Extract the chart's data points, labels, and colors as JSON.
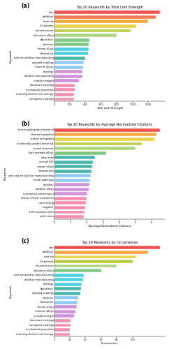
{
  "chart_a": {
    "title": "Top 20 Keywords by Total Link Strength",
    "xlabel": "Total Link Strength",
    "keywords": [
      "composite coatings",
      "scanning electron microscopy",
      "mechanical properties",
      "aluminum coatings",
      "tensile strength",
      "additive manufacturing",
      "coatings",
      "titanium alloys",
      "sprayed coatings",
      "wire arc additive manufacturing",
      "fabrication",
      "binary alloys",
      "textures",
      "deposition",
      "aluminum alloys",
      "microstructure",
      "3d printers",
      "laser arc",
      "additives",
      "wire"
    ],
    "values": [
      250,
      255,
      258,
      262,
      315,
      358,
      362,
      368,
      375,
      400,
      428,
      438,
      442,
      448,
      800,
      975,
      1050,
      1200,
      1300,
      1350
    ],
    "colors": [
      "#f48fb1",
      "#f48fb1",
      "#f48fb1",
      "#f48fb1",
      "#ce93d8",
      "#ce93d8",
      "#ce93d8",
      "#90caf9",
      "#90caf9",
      "#4db6ac",
      "#4dd0e1",
      "#4dd0e1",
      "#81c784",
      "#81c784",
      "#aed581",
      "#bcca45",
      "#e6d44a",
      "#f4a742",
      "#f47c52",
      "#ef5350"
    ],
    "xticks": [
      0,
      200,
      400,
      600,
      800,
      1000,
      1200
    ]
  },
  "chart_b": {
    "title": "Top 20 Keywords by Average Normalized Citations",
    "xlabel": "Average Normalized Citations",
    "keywords": [
      "yield stress",
      "316 / stainless steel",
      "tungsten",
      "curve fitting",
      "effects of heat treatments",
      "mechanical performance",
      "additive alloys",
      "carbides",
      "metal additivies",
      "wire and arc additive manufacturing",
      "manufacture",
      "copper alloys",
      "inconel 625",
      "alloy steel",
      "high strength alloys",
      "crystal structure",
      "functionally graded materials",
      "beams and girders",
      "thermal expansion",
      "functionally graded material"
    ],
    "values": [
      1.8,
      1.85,
      1.9,
      1.95,
      2.0,
      2.05,
      2.1,
      2.15,
      2.2,
      2.25,
      2.28,
      2.33,
      2.38,
      2.5,
      3.2,
      5.0,
      5.4,
      6.15,
      6.3,
      6.5
    ],
    "colors": [
      "#f48fb1",
      "#f48fb1",
      "#f48fb1",
      "#f48fb1",
      "#f48fb1",
      "#ce93d8",
      "#ce93d8",
      "#ce93d8",
      "#90caf9",
      "#90caf9",
      "#4db6ac",
      "#4db6ac",
      "#4db6ac",
      "#4db6ac",
      "#81c784",
      "#aed581",
      "#bcca45",
      "#e6d44a",
      "#f4a742",
      "#ef5350"
    ],
    "xticks": [
      0,
      1,
      2,
      3,
      4,
      5,
      6
    ]
  },
  "chart_c": {
    "title": "Top 20 Keywords by Occurrences",
    "xlabel": "Occurrences",
    "keywords": [
      "scanning electron microscopy",
      "mechanical properties",
      "composite coatings",
      "aluminum coatings",
      "tensile strength",
      "titanium alloys",
      "binary alloys",
      "fabrication",
      "textures",
      "sprayed coatings",
      "deposition",
      "coatings",
      "additive manufacturing",
      "wire arc additive manufacturing",
      "aluminum alloys",
      "microstructure",
      "3d printers",
      "wire arc",
      "additives",
      "wire"
    ],
    "values": [
      20,
      20,
      21,
      21,
      25,
      27,
      29,
      30,
      31,
      33,
      34,
      35,
      37,
      38,
      60,
      80,
      100,
      105,
      120,
      135
    ],
    "colors": [
      "#f48fb1",
      "#f48fb1",
      "#f48fb1",
      "#f48fb1",
      "#ce93d8",
      "#ce93d8",
      "#ce93d8",
      "#90caf9",
      "#90caf9",
      "#4db6ac",
      "#4db6ac",
      "#4dd0e1",
      "#4dd0e1",
      "#4dd0e1",
      "#81c784",
      "#aed581",
      "#bcca45",
      "#e6d44a",
      "#f4a742",
      "#ef5350"
    ],
    "xticks": [
      0,
      20,
      40,
      60,
      80,
      100
    ]
  }
}
